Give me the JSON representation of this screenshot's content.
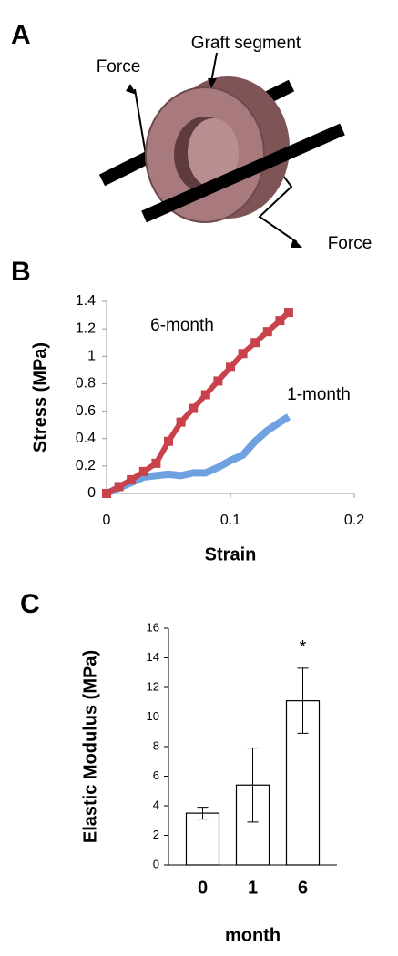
{
  "panel_a": {
    "panel": "A",
    "graft_label": "Graft segment",
    "force_labels": [
      "Force",
      "Force"
    ]
  },
  "chart_data": [
    {
      "type": "line",
      "panel": "B",
      "x_label": "Strain",
      "y_label": "Stress (MPa)",
      "x": [
        0,
        0.01,
        0.02,
        0.03,
        0.04,
        0.05,
        0.06,
        0.07,
        0.08,
        0.09,
        0.1,
        0.11,
        0.12,
        0.13,
        0.14,
        0.147
      ],
      "series": [
        {
          "name": "6-month",
          "color": "#c8414b",
          "values": [
            0,
            0.05,
            0.1,
            0.16,
            0.22,
            0.38,
            0.52,
            0.62,
            0.72,
            0.82,
            0.92,
            1.02,
            1.1,
            1.18,
            1.26,
            1.32
          ]
        },
        {
          "name": "1-month",
          "color": "#6fa0e0",
          "values": [
            0,
            0.04,
            0.08,
            0.12,
            0.13,
            0.14,
            0.13,
            0.15,
            0.15,
            0.19,
            0.24,
            0.28,
            0.38,
            0.46,
            0.52,
            0.56
          ]
        }
      ],
      "xlim": [
        0,
        0.2
      ],
      "xticks": [
        0,
        0.1,
        0.2
      ],
      "ylim": [
        0,
        1.4
      ],
      "yticks": [
        0,
        0.2,
        0.4,
        0.6,
        0.8,
        1,
        1.2,
        1.4
      ]
    },
    {
      "type": "bar",
      "panel": "C",
      "x_label": "month",
      "y_label": "Elastic Modulus (MPa)",
      "categories": [
        "0",
        "1",
        "6"
      ],
      "values": [
        3.5,
        5.4,
        11.1
      ],
      "errors": [
        0.4,
        2.5,
        2.2
      ],
      "color": "#ffffff",
      "annotations": [
        {
          "text": "*",
          "category": "6"
        }
      ],
      "ylim": [
        0,
        16
      ],
      "yticks": [
        0,
        2,
        4,
        6,
        8,
        10,
        12,
        14,
        16
      ]
    }
  ]
}
